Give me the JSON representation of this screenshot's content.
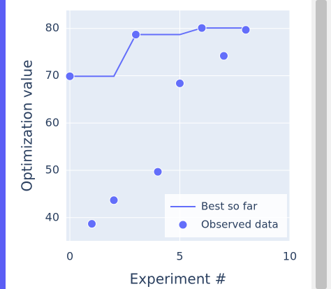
{
  "chart_data": {
    "type": "scatter",
    "x_label": "Experiment #",
    "y_label": "Optimization value",
    "x": [
      0,
      1,
      2,
      3,
      4,
      5,
      6,
      7,
      8
    ],
    "series": [
      {
        "name": "Best so far",
        "mode": "lines",
        "color": "#636efa",
        "values": [
          69.9,
          69.9,
          69.9,
          78.7,
          78.7,
          78.7,
          80.1,
          80.1,
          80.1
        ]
      },
      {
        "name": "Observed data",
        "mode": "markers",
        "color": "#636efa",
        "values": [
          69.9,
          38.7,
          43.7,
          78.7,
          49.7,
          68.4,
          80.1,
          74.2,
          79.7
        ]
      }
    ],
    "xlim": [
      -0.16,
      10
    ],
    "ylim": [
      35.1,
      83.8
    ],
    "xticks": [
      0,
      5,
      10
    ],
    "yticks": [
      40,
      50,
      60,
      70,
      80
    ],
    "grid": true,
    "legend": "bottom-right"
  }
}
